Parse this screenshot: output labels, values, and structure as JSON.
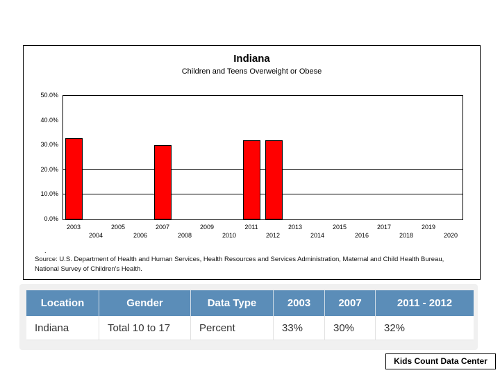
{
  "chart": {
    "title": "Indiana",
    "subtitle": "Children and Teens Overweight or Obese",
    "footnote_dot": ".",
    "source_lines": [
      "Source: U.S. Department of Health and Human Services, Health Resources and Services Administration, Maternal and Child Health Bureau,",
      "National Survey of Children's Health."
    ]
  },
  "chart_data": {
    "type": "bar",
    "title": "Indiana",
    "subtitle": "Children and Teens Overweight or Obese",
    "x": [
      2003,
      2004,
      2005,
      2006,
      2007,
      2008,
      2009,
      2010,
      2011,
      2012,
      2013,
      2014,
      2015,
      2016,
      2017,
      2018,
      2019,
      2020
    ],
    "values": [
      33,
      null,
      null,
      null,
      30,
      null,
      null,
      null,
      32,
      32,
      null,
      null,
      null,
      null,
      null,
      null,
      null,
      null
    ],
    "xlabel": "",
    "ylabel": "",
    "ylim": [
      0,
      50
    ],
    "yticks": [
      {
        "value": 50,
        "label": "50.0%"
      },
      {
        "value": 40,
        "label": "40.0%"
      },
      {
        "value": 30,
        "label": "30.0%"
      },
      {
        "value": 20,
        "label": "20.0%"
      },
      {
        "value": 10,
        "label": "10.0%"
      },
      {
        "value": 0,
        "label": "0.0%"
      }
    ],
    "gridlines": [
      20,
      10
    ],
    "grid": "horizontal lines at 10% and 20% only",
    "legend_position": "none",
    "bar_color": "#ff0000",
    "bar_border_color": "#000000"
  },
  "table": {
    "header_bg": "#5b8db8",
    "headers": [
      "Location",
      "Gender",
      "Data Type",
      "2003",
      "2007",
      "2011 - 2012"
    ],
    "rows": [
      [
        "Indiana",
        "Total 10 to 17",
        "Percent",
        "33%",
        "30%",
        "32%"
      ]
    ]
  },
  "footer": {
    "badge_label": "Kids Count Data Center"
  }
}
